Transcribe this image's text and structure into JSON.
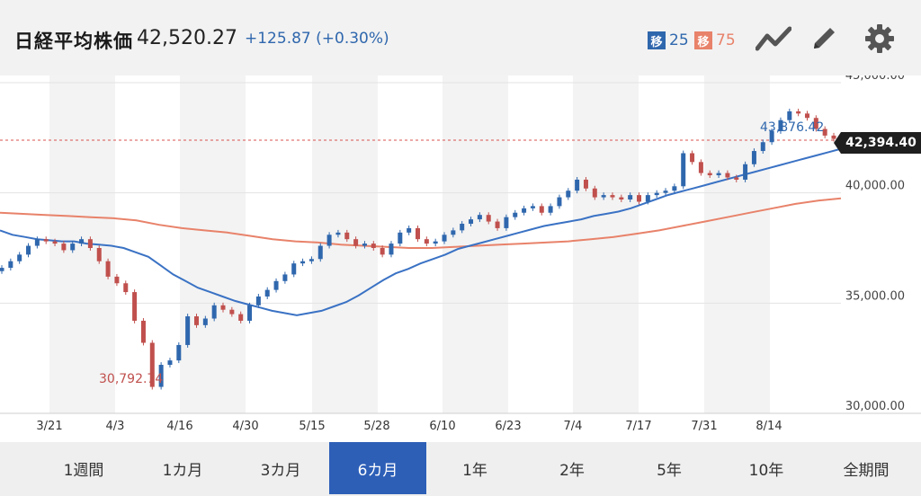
{
  "header": {
    "title": "日経平均株価",
    "price": "42,520.27",
    "change": "+125.87 (+0.30%)",
    "ma_short_badge": "移",
    "ma_short_value": "25",
    "ma_long_badge": "移",
    "ma_long_value": "75",
    "colors": {
      "up": "#2f67ad",
      "down": "#c0504d",
      "ma_short": "#e8826a"
    }
  },
  "toolbar": {
    "icons": [
      "line-chart-icon",
      "pencil-icon",
      "gear-icon"
    ]
  },
  "chart_data": {
    "type": "candlestick",
    "ylim": [
      30000,
      45000
    ],
    "y_ticks": [
      "45,000.00",
      "40,000.00",
      "35,000.00",
      "30,000.00"
    ],
    "x_ticks": [
      "3/21",
      "4/3",
      "4/16",
      "4/30",
      "5/15",
      "5/28",
      "6/10",
      "6/23",
      "7/4",
      "7/17",
      "7/31",
      "8/14"
    ],
    "current_price_label": "42,394.40",
    "high_annotation": "43,876.42",
    "low_annotation": "30,792.74",
    "closes": [
      36600,
      36900,
      37200,
      37600,
      37900,
      37800,
      37700,
      37400,
      37700,
      37900,
      37500,
      36900,
      36200,
      35900,
      35500,
      34200,
      33200,
      31200,
      32200,
      32400,
      33100,
      34400,
      34000,
      34300,
      34900,
      34700,
      34500,
      34200,
      34900,
      35300,
      35600,
      36000,
      36300,
      36800,
      36900,
      37000,
      37600,
      38100,
      38200,
      37900,
      37600,
      37700,
      37500,
      37200,
      37700,
      38200,
      38400,
      37900,
      37700,
      37800,
      38100,
      38300,
      38600,
      38800,
      39000,
      38700,
      38400,
      38900,
      39100,
      39300,
      39400,
      39100,
      39400,
      39800,
      40100,
      40600,
      40200,
      39800,
      39900,
      39800,
      39700,
      39900,
      39600,
      39900,
      40000,
      40100,
      40300,
      41800,
      41400,
      40900,
      40800,
      40900,
      40700,
      40600,
      41300,
      41900,
      42300,
      42800,
      43300,
      43700,
      43600,
      43400,
      42900,
      42600,
      42450
    ],
    "ma_short": [
      38300,
      38100,
      38000,
      37900,
      37850,
      37800,
      37800,
      37700,
      37650,
      37600,
      37500,
      37300,
      37100,
      36700,
      36300,
      36000,
      35700,
      35500,
      35300,
      35100,
      34950,
      34800,
      34650,
      34550,
      34450,
      34550,
      34650,
      34850,
      35050,
      35350,
      35700,
      36050,
      36350,
      36550,
      36800,
      37000,
      37200,
      37450,
      37600,
      37750,
      37900,
      38050,
      38200,
      38350,
      38500,
      38600,
      38700,
      38800,
      38950,
      39050,
      39150,
      39300,
      39500,
      39700,
      39900,
      40050,
      40200,
      40350,
      40500,
      40650,
      40800,
      40950,
      41100,
      41250,
      41400,
      41550,
      41700,
      41850,
      42000
    ],
    "ma_long": [
      39100,
      39050,
      39000,
      38950,
      38900,
      38850,
      38750,
      38550,
      38400,
      38300,
      38200,
      38050,
      37900,
      37800,
      37750,
      37650,
      37600,
      37550,
      37500,
      37500,
      37550,
      37600,
      37650,
      37700,
      37750,
      37800,
      37900,
      38000,
      38150,
      38300,
      38500,
      38700,
      38900,
      39100,
      39300,
      39500,
      39650,
      39750
    ]
  },
  "tabs": [
    {
      "label": "1週間",
      "active": false
    },
    {
      "label": "1カ月",
      "active": false
    },
    {
      "label": "3カ月",
      "active": false
    },
    {
      "label": "6カ月",
      "active": true
    },
    {
      "label": "1年",
      "active": false
    },
    {
      "label": "2年",
      "active": false
    },
    {
      "label": "5年",
      "active": false
    },
    {
      "label": "10年",
      "active": false
    },
    {
      "label": "全期間",
      "active": false
    }
  ]
}
